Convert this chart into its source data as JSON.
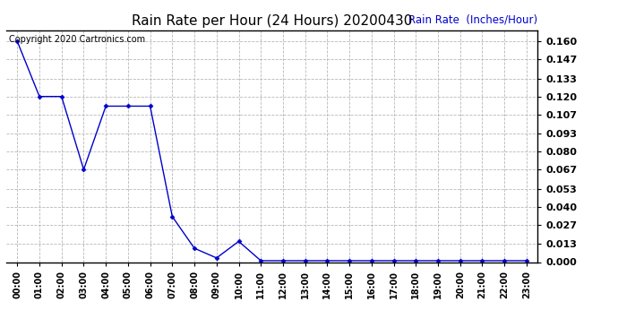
{
  "title": "Rain Rate per Hour (24 Hours) 20200430",
  "ylabel": "Rain Rate  (Inches/Hour)",
  "copyright_text": "Copyright 2020 Cartronics.com",
  "line_color": "#0000cc",
  "background_color": "#ffffff",
  "grid_color": "#b0b0b0",
  "title_color": "#000000",
  "ylabel_color": "#0000cc",
  "hours": [
    0,
    1,
    2,
    3,
    4,
    5,
    6,
    7,
    8,
    9,
    10,
    11,
    12,
    13,
    14,
    15,
    16,
    17,
    18,
    19,
    20,
    21,
    22,
    23
  ],
  "values": [
    0.16,
    0.12,
    0.12,
    0.067,
    0.113,
    0.113,
    0.113,
    0.033,
    0.01,
    0.003,
    0.015,
    0.001,
    0.001,
    0.001,
    0.001,
    0.001,
    0.001,
    0.001,
    0.001,
    0.001,
    0.001,
    0.001,
    0.001,
    0.001
  ],
  "yticks": [
    0.0,
    0.013,
    0.027,
    0.04,
    0.053,
    0.067,
    0.08,
    0.093,
    0.107,
    0.12,
    0.133,
    0.147,
    0.16
  ],
  "ylim_max": 0.168,
  "figsize": [
    6.9,
    3.75
  ],
  "dpi": 100
}
